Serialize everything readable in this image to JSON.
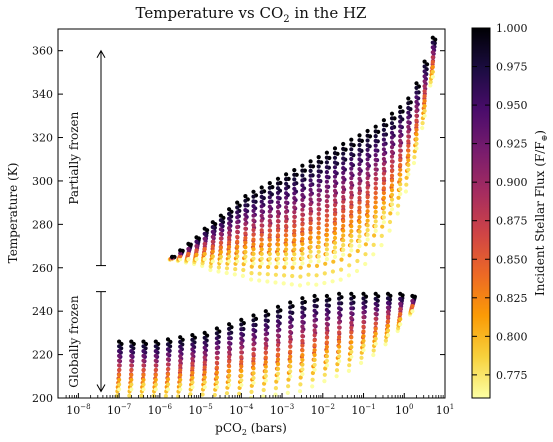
{
  "chart_data": {
    "type": "scatter",
    "title": "Temperature vs CO",
    "title_subscript": "2",
    "title_suffix": " in the HZ",
    "xlabel": "pCO",
    "xlabel_subscript": "2",
    "xlabel_suffix": " (bars)",
    "ylabel": "Temperature (K)",
    "x_scale": "log",
    "x_range_log10": [
      -8.5,
      1
    ],
    "ylim": [
      200,
      370
    ],
    "x_ticks_exp": [
      "-8",
      "-7",
      "-6",
      "-5",
      "-4",
      "-3",
      "-2",
      "-1",
      "0",
      "1"
    ],
    "x_tick_base": "10",
    "y_ticks": [
      200,
      220,
      240,
      260,
      280,
      300,
      320,
      340,
      360
    ],
    "grid": false,
    "colorbar": {
      "label": "Incident Stellar Flux (F/F",
      "label_subscript": "⊕",
      "label_suffix": ")",
      "range": [
        0.76,
        1.0
      ],
      "ticks": [
        "1.000",
        "0.975",
        "0.950",
        "0.925",
        "0.900",
        "0.875",
        "0.850",
        "0.825",
        "0.800",
        "0.775"
      ],
      "colormap": [
        "#fcffa4",
        "#f7d13d",
        "#fb9b06",
        "#ed6925",
        "#cf4446",
        "#a52c60",
        "#781c6d",
        "#4a0c6b",
        "#1b0c41",
        "#000004"
      ]
    },
    "annotations": [
      {
        "text": "Partially frozen",
        "y_range": [
          261,
          360
        ]
      },
      {
        "text": "Globally frozen",
        "y_range": [
          203,
          249
        ]
      }
    ],
    "series": [
      {
        "name": "",
        "description_values": "columns of points: log10 pCO2, T range at flux 1.0 (low..high), T range at flux 0.76 (low..high)",
        "upper_branch": {
          "x_log10": [
            -5.7,
            -5.5,
            -5.3,
            -5.1,
            -4.9,
            -4.7,
            -4.5,
            -4.3,
            -4.1,
            -3.9,
            -3.7,
            -3.5,
            -3.3,
            -3.1,
            -2.9,
            -2.7,
            -2.5,
            -2.3,
            -2.1,
            -1.9,
            -1.7,
            -1.5,
            -1.3,
            -1.1,
            -0.9,
            -0.7,
            -0.5,
            -0.3,
            -0.1,
            0.1,
            0.3,
            0.5,
            0.7
          ],
          "t_max": [
            265,
            268,
            271,
            274,
            278,
            281,
            284,
            287,
            290,
            293,
            295,
            297,
            299,
            301,
            303,
            305,
            307,
            309,
            311,
            313,
            315,
            317,
            319,
            321,
            323,
            325,
            328,
            331,
            334,
            338,
            345,
            355,
            366
          ],
          "t_min": [
            264,
            264,
            264,
            264,
            264,
            263,
            263,
            263,
            263,
            263,
            262,
            262,
            262,
            262,
            262,
            262,
            262,
            263,
            263,
            264,
            265,
            266,
            268,
            270,
            273,
            277,
            281,
            287,
            294,
            303,
            315,
            330,
            348
          ]
        },
        "lower_branch": {
          "x_log10": [
            -7.0,
            -6.7,
            -6.4,
            -6.1,
            -5.8,
            -5.5,
            -5.2,
            -4.9,
            -4.6,
            -4.3,
            -4.0,
            -3.7,
            -3.4,
            -3.1,
            -2.8,
            -2.5,
            -2.2,
            -1.9,
            -1.6,
            -1.3,
            -1.0,
            -0.7,
            -0.4,
            -0.1,
            0.2
          ],
          "t_max": [
            226,
            226,
            226,
            226,
            227,
            228,
            229,
            230,
            232,
            234,
            236,
            238,
            240,
            242,
            244,
            246,
            247,
            247,
            248,
            248,
            248,
            248,
            248,
            248,
            247
          ],
          "t_min": [
            204,
            204,
            204,
            204,
            204,
            204,
            205,
            205,
            205,
            206,
            206,
            207,
            208,
            209,
            210,
            211,
            213,
            215,
            217,
            219,
            222,
            225,
            229,
            234,
            240
          ]
        }
      }
    ]
  }
}
